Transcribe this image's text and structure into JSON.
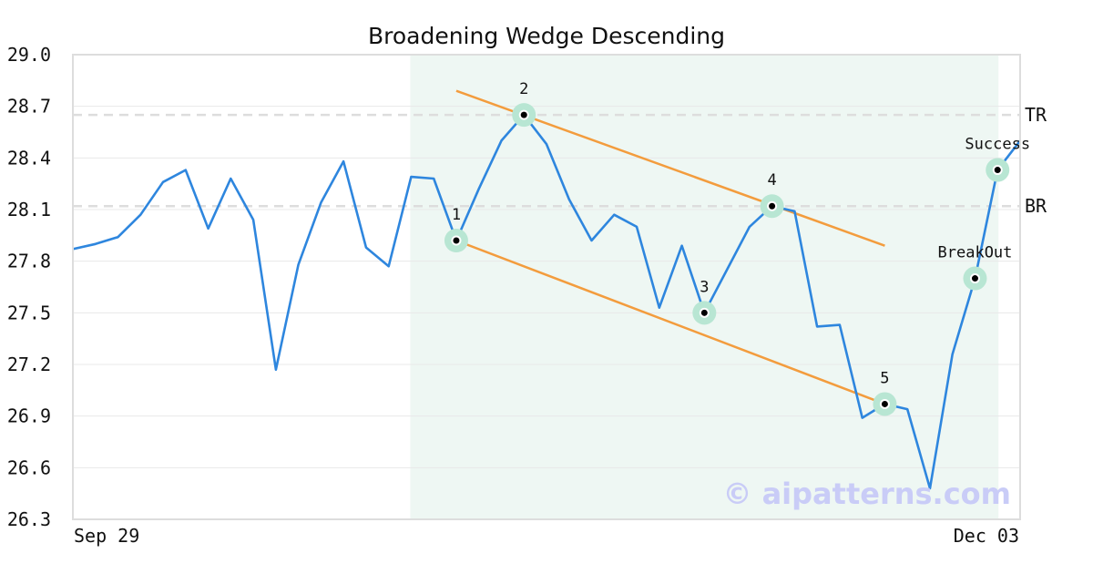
{
  "chart_data": {
    "type": "line",
    "title": "Broadening Wedge Descending",
    "xlabel": "",
    "ylabel": "",
    "ylim": [
      26.3,
      29.0
    ],
    "yticks": [
      "29.0",
      "28.7",
      "28.4",
      "28.1",
      "27.8",
      "27.5",
      "27.2",
      "26.9",
      "26.6",
      "26.3"
    ],
    "x_tick_labels": [
      "Sep 29",
      "Dec 03"
    ],
    "grid": true,
    "series": [
      {
        "values": [
          27.87,
          27.9,
          27.94,
          28.07,
          28.26,
          28.33,
          27.99,
          28.28,
          28.04,
          27.17,
          27.78,
          28.14,
          28.38,
          27.88,
          27.77,
          28.29,
          28.28,
          27.92,
          28.22,
          28.5,
          28.65,
          28.48,
          28.16,
          27.92,
          28.07,
          28.0,
          27.53,
          27.89,
          27.5,
          27.75,
          28.0,
          28.12,
          28.09,
          27.42,
          27.43,
          26.89,
          26.97,
          26.94,
          26.48,
          27.26,
          27.7,
          28.33,
          28.5
        ]
      }
    ],
    "pattern_points": [
      {
        "label": "1",
        "index": 17,
        "value": 27.92
      },
      {
        "label": "2",
        "index": 20,
        "value": 28.65
      },
      {
        "label": "3",
        "index": 28,
        "value": 27.5
      },
      {
        "label": "4",
        "index": 31,
        "value": 28.12
      },
      {
        "label": "5",
        "index": 36,
        "value": 26.97
      },
      {
        "label": "BreakOut",
        "index": 40,
        "value": 27.7
      },
      {
        "label": "Success",
        "index": 41,
        "value": 28.33
      }
    ],
    "trendlines": [
      {
        "from": {
          "index": 17,
          "value": 27.92
        },
        "to": {
          "index": 36,
          "value": 26.97
        }
      },
      {
        "from": {
          "index": 17,
          "value": 28.79
        },
        "to": {
          "index": 36,
          "value": 27.89
        }
      }
    ],
    "pattern_region": {
      "start_index": 15,
      "end_index": 41
    },
    "levels": [
      {
        "label": "TR",
        "value": 28.65
      },
      {
        "label": "BR",
        "value": 28.12
      }
    ],
    "colors": {
      "line": "#2e86de",
      "trendline": "#f39c3d",
      "region": "#eef7f3",
      "marker_halo": "#b8e6d3",
      "level_line": "#dddddd"
    }
  },
  "watermark": "© aipatterns.com"
}
